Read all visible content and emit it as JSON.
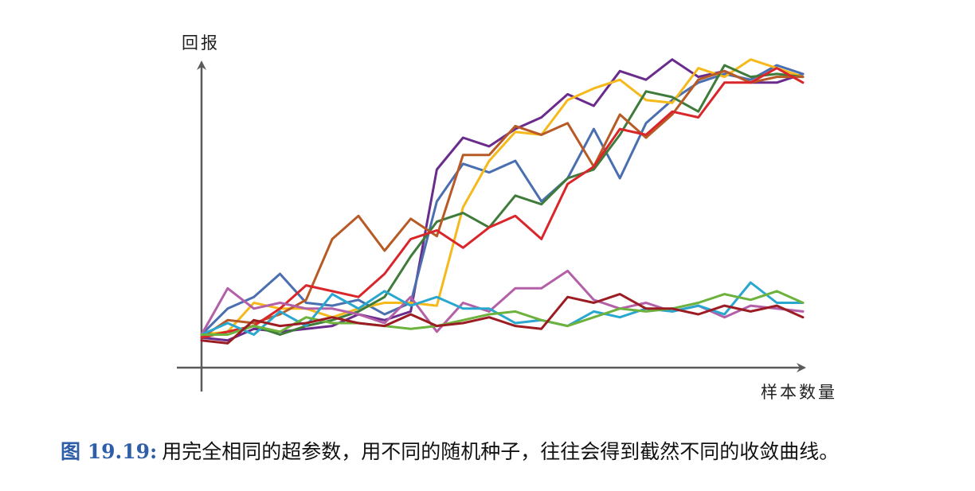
{
  "chart_data": {
    "type": "line",
    "xlabel": "样本数量",
    "ylabel": "回报",
    "grid": false,
    "legend": "none",
    "xlim": [
      0,
      23
    ],
    "ylim": [
      0,
      10
    ],
    "x": [
      0,
      1,
      2,
      3,
      4,
      5,
      6,
      7,
      8,
      9,
      10,
      11,
      12,
      13,
      14,
      15,
      16,
      17,
      18,
      19,
      20,
      21,
      22,
      23
    ],
    "series": [
      {
        "color": "#6a2c8c",
        "values": [
          0.6,
          0.5,
          0.9,
          0.8,
          0.9,
          1.0,
          1.4,
          1.2,
          1.5,
          6.4,
          7.5,
          7.2,
          7.8,
          8.2,
          9.0,
          8.6,
          9.8,
          9.5,
          10.2,
          9.6,
          9.8,
          9.4,
          9.4,
          9.7
        ]
      },
      {
        "color": "#4a6fb0",
        "values": [
          0.7,
          1.6,
          2.0,
          2.8,
          1.8,
          1.7,
          1.9,
          1.4,
          1.8,
          5.3,
          6.6,
          6.3,
          6.7,
          5.3,
          6.1,
          7.8,
          6.1,
          8.0,
          8.8,
          9.4,
          9.7,
          9.5,
          10.0,
          9.7
        ]
      },
      {
        "color": "#f5b91c",
        "values": [
          0.7,
          0.8,
          1.8,
          1.6,
          1.6,
          1.3,
          1.6,
          1.8,
          1.8,
          1.7,
          5.1,
          6.7,
          7.7,
          7.6,
          8.8,
          9.2,
          9.5,
          8.8,
          8.7,
          9.9,
          9.6,
          10.2,
          9.9,
          9.6
        ]
      },
      {
        "color": "#3f7b3a",
        "values": [
          0.6,
          0.8,
          1.0,
          0.7,
          1.0,
          1.2,
          1.5,
          2.0,
          3.4,
          4.6,
          4.9,
          4.4,
          5.5,
          5.2,
          6.1,
          6.4,
          7.6,
          9.1,
          8.9,
          8.4,
          10.0,
          9.6,
          9.7,
          9.6
        ]
      },
      {
        "color": "#b85a26",
        "values": [
          0.6,
          1.2,
          1.1,
          1.4,
          1.9,
          4.0,
          4.8,
          3.6,
          4.7,
          4.1,
          6.9,
          6.9,
          7.9,
          7.6,
          8.0,
          6.5,
          8.3,
          7.5,
          8.3,
          9.5,
          9.8,
          9.4,
          9.6,
          9.6
        ]
      },
      {
        "color": "#d9262b",
        "values": [
          0.6,
          0.8,
          1.0,
          1.6,
          2.4,
          2.2,
          2.0,
          2.8,
          4.0,
          4.3,
          3.7,
          4.4,
          4.8,
          4.0,
          5.9,
          6.5,
          7.8,
          7.6,
          8.4,
          8.2,
          9.4,
          9.4,
          9.9,
          9.4
        ]
      },
      {
        "color": "#b360a8",
        "values": [
          0.7,
          2.3,
          1.6,
          1.8,
          1.6,
          1.6,
          1.4,
          1.1,
          2.0,
          0.8,
          1.8,
          1.5,
          2.3,
          2.3,
          2.9,
          1.9,
          1.6,
          1.8,
          1.5,
          1.7,
          1.3,
          1.7,
          1.6,
          1.5
        ]
      },
      {
        "color": "#2aa7cf",
        "values": [
          0.7,
          1.1,
          0.7,
          1.5,
          1.0,
          2.1,
          1.6,
          2.2,
          1.7,
          2.0,
          1.6,
          1.6,
          1.1,
          1.2,
          1.0,
          1.5,
          1.3,
          1.6,
          1.5,
          1.7,
          1.4,
          2.5,
          1.8,
          1.8
        ]
      },
      {
        "color": "#6cb23d",
        "values": [
          0.7,
          0.7,
          1.0,
          0.8,
          1.3,
          1.1,
          1.1,
          1.0,
          0.9,
          1.0,
          1.2,
          1.4,
          1.5,
          1.2,
          1.0,
          1.3,
          1.6,
          1.5,
          1.6,
          1.8,
          2.1,
          1.9,
          2.2,
          1.8
        ]
      },
      {
        "color": "#9c1c24",
        "values": [
          0.5,
          0.4,
          1.2,
          1.0,
          1.1,
          1.3,
          1.1,
          1.0,
          1.4,
          1.0,
          1.1,
          1.3,
          1.0,
          0.9,
          2.0,
          1.8,
          2.1,
          1.6,
          1.6,
          1.4,
          1.7,
          1.5,
          1.7,
          1.3
        ]
      }
    ]
  },
  "caption": {
    "label": "图 19.19:",
    "text": "用完全相同的超参数，用不同的随机种子，往往会得到截然不同的收敛曲线。"
  }
}
